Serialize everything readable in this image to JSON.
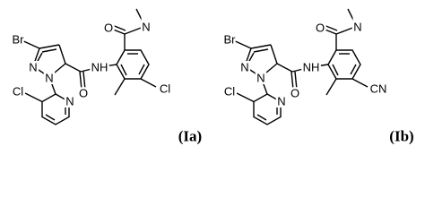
{
  "molecules": [
    {
      "atoms": [
        "Br",
        "N",
        "N",
        "N",
        "Cl",
        "O",
        "NH",
        "O",
        "N",
        "Cl"
      ],
      "label": "(Ia)"
    },
    {
      "atoms": [
        "Br",
        "N",
        "N",
        "N",
        "Cl",
        "O",
        "NH",
        "O",
        "N",
        "CN"
      ],
      "label": "(Ib)"
    }
  ]
}
